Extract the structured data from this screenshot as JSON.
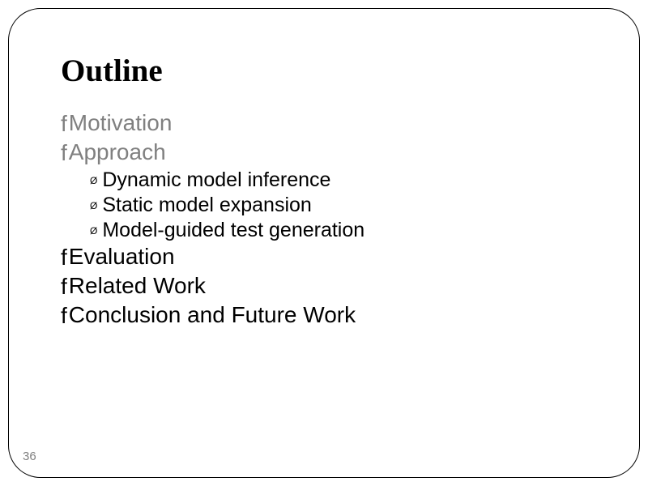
{
  "title": "Outline",
  "bullets": {
    "l1_char": "f",
    "l2_char": "Ø",
    "l1_fontsize": 28,
    "l2_fontsize": 25,
    "color_normal": "#000000",
    "color_dim": "#808080"
  },
  "items": [
    {
      "text": "Motivation",
      "dim": true
    },
    {
      "text": "Approach",
      "dim": true
    },
    {
      "text": "Evaluation",
      "dim": false
    },
    {
      "text": "Related Work",
      "dim": false
    },
    {
      "text": "Conclusion and Future Work",
      "dim": false
    }
  ],
  "subitems": [
    {
      "text": "Dynamic model inference"
    },
    {
      "text": "Static model expansion"
    },
    {
      "text": "Model-guided test generation"
    }
  ],
  "page_number": "36",
  "background_color": "#ffffff",
  "frame_border_color": "#000000",
  "frame_border_radius": 40
}
